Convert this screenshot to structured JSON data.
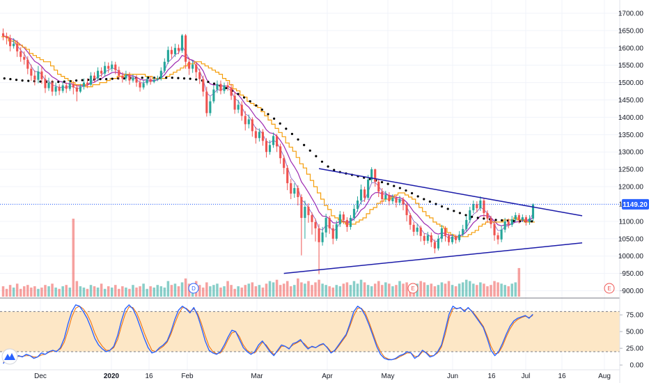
{
  "chart_data": {
    "type": "candlestick",
    "price_axis": {
      "ticks": [
        "1700.00",
        "1650.00",
        "1600.00",
        "1550.00",
        "1500.00",
        "1450.00",
        "1400.00",
        "1350.00",
        "1300.00",
        "1250.00",
        "1200.00",
        "1150.00",
        "1100.00",
        "1050.00",
        "1000.00",
        "950.00",
        "900.00"
      ],
      "ylim": [
        885,
        1730
      ]
    },
    "current_price": {
      "label": "1149.20",
      "value": 1149.2,
      "color": "#2962ff"
    },
    "x_axis_labels": [
      "Dec",
      "2020",
      "16",
      "Feb",
      "Mar",
      "Apr",
      "May",
      "Jun",
      "16",
      "Jul",
      "16",
      "Aug"
    ],
    "colors": {
      "up": "#26a69a",
      "down": "#ef5350",
      "ema_orange": "#f59e0b",
      "ma_purple": "#9c27b0",
      "dotted_ma": "#000000",
      "trendline": "#1a1aa8",
      "stoch_fast": "#2962ff",
      "stoch_slow": "#ef6c00",
      "stoch_band": "#fde7c6"
    },
    "candles": [
      [
        1642,
        1634,
        1656,
        1622
      ],
      [
        1634,
        1628,
        1644,
        1610
      ],
      [
        1628,
        1605,
        1638,
        1590
      ],
      [
        1605,
        1612,
        1628,
        1598
      ],
      [
        1612,
        1590,
        1622,
        1574
      ],
      [
        1590,
        1574,
        1602,
        1560
      ],
      [
        1574,
        1566,
        1590,
        1552
      ],
      [
        1566,
        1540,
        1576,
        1524
      ],
      [
        1540,
        1520,
        1552,
        1505
      ],
      [
        1520,
        1508,
        1535,
        1492
      ],
      [
        1508,
        1532,
        1548,
        1498
      ],
      [
        1532,
        1510,
        1546,
        1496
      ],
      [
        1510,
        1484,
        1522,
        1470
      ],
      [
        1484,
        1500,
        1514,
        1476
      ],
      [
        1500,
        1474,
        1508,
        1462
      ],
      [
        1474,
        1488,
        1500,
        1462
      ],
      [
        1488,
        1476,
        1496,
        1464
      ],
      [
        1476,
        1492,
        1504,
        1470
      ],
      [
        1492,
        1482,
        1500,
        1470
      ],
      [
        1482,
        1496,
        1508,
        1476
      ],
      [
        1496,
        1486,
        1504,
        1466
      ],
      [
        1486,
        1474,
        1494,
        1446
      ],
      [
        1474,
        1488,
        1496,
        1470
      ],
      [
        1488,
        1500,
        1512,
        1480
      ],
      [
        1500,
        1494,
        1512,
        1484
      ],
      [
        1494,
        1520,
        1530,
        1490
      ],
      [
        1520,
        1512,
        1530,
        1500
      ],
      [
        1512,
        1534,
        1544,
        1504
      ],
      [
        1534,
        1526,
        1544,
        1516
      ],
      [
        1526,
        1548,
        1560,
        1518
      ],
      [
        1548,
        1540,
        1558,
        1528
      ],
      [
        1540,
        1552,
        1562,
        1532
      ],
      [
        1552,
        1536,
        1560,
        1524
      ],
      [
        1536,
        1520,
        1546,
        1510
      ],
      [
        1520,
        1512,
        1530,
        1500
      ],
      [
        1512,
        1522,
        1534,
        1504
      ],
      [
        1522,
        1506,
        1530,
        1494
      ],
      [
        1506,
        1514,
        1524,
        1500
      ],
      [
        1514,
        1500,
        1522,
        1488
      ],
      [
        1500,
        1486,
        1508,
        1474
      ],
      [
        1486,
        1498,
        1506,
        1480
      ],
      [
        1498,
        1510,
        1518,
        1492
      ],
      [
        1510,
        1502,
        1518,
        1494
      ],
      [
        1502,
        1508,
        1516,
        1498
      ],
      [
        1508,
        1512,
        1520,
        1504
      ],
      [
        1512,
        1534,
        1544,
        1506
      ],
      [
        1534,
        1560,
        1570,
        1528
      ],
      [
        1560,
        1594,
        1604,
        1554
      ],
      [
        1594,
        1582,
        1604,
        1570
      ],
      [
        1582,
        1600,
        1612,
        1574
      ],
      [
        1600,
        1592,
        1610,
        1582
      ],
      [
        1592,
        1636,
        1640,
        1586
      ],
      [
        1636,
        1560,
        1640,
        1540
      ],
      [
        1560,
        1540,
        1572,
        1522
      ],
      [
        1540,
        1552,
        1564,
        1528
      ],
      [
        1552,
        1530,
        1560,
        1514
      ],
      [
        1530,
        1510,
        1540,
        1496
      ],
      [
        1510,
        1474,
        1520,
        1460
      ],
      [
        1474,
        1412,
        1488,
        1402
      ],
      [
        1412,
        1446,
        1460,
        1404
      ],
      [
        1446,
        1480,
        1492,
        1440
      ],
      [
        1480,
        1496,
        1506,
        1470
      ],
      [
        1496,
        1476,
        1506,
        1466
      ],
      [
        1476,
        1492,
        1500,
        1468
      ],
      [
        1492,
        1486,
        1502,
        1476
      ],
      [
        1486,
        1462,
        1496,
        1450
      ],
      [
        1462,
        1422,
        1472,
        1410
      ],
      [
        1422,
        1436,
        1450,
        1412
      ],
      [
        1436,
        1404,
        1446,
        1390
      ],
      [
        1404,
        1380,
        1418,
        1362
      ],
      [
        1380,
        1394,
        1408,
        1368
      ],
      [
        1394,
        1360,
        1400,
        1344
      ],
      [
        1360,
        1340,
        1372,
        1324
      ],
      [
        1340,
        1358,
        1368,
        1330
      ],
      [
        1358,
        1332,
        1366,
        1318
      ],
      [
        1332,
        1300,
        1340,
        1284
      ],
      [
        1300,
        1320,
        1334,
        1292
      ],
      [
        1320,
        1346,
        1356,
        1312
      ],
      [
        1346,
        1316,
        1352,
        1300
      ],
      [
        1316,
        1282,
        1324,
        1266
      ],
      [
        1282,
        1254,
        1290,
        1236
      ],
      [
        1254,
        1210,
        1262,
        1190
      ],
      [
        1210,
        1180,
        1222,
        1164
      ],
      [
        1180,
        1196,
        1210,
        1168
      ],
      [
        1196,
        1170,
        1204,
        1146
      ],
      [
        1170,
        1110,
        1178,
        1002
      ],
      [
        1110,
        1142,
        1160,
        1050
      ],
      [
        1142,
        1118,
        1152,
        1096
      ],
      [
        1118,
        1098,
        1126,
        1062
      ],
      [
        1098,
        1080,
        1108,
        1042
      ],
      [
        1080,
        1040,
        1092,
        948
      ],
      [
        1040,
        1068,
        1084,
        1030
      ],
      [
        1068,
        1110,
        1122,
        1054
      ],
      [
        1110,
        1080,
        1116,
        1064
      ],
      [
        1080,
        1050,
        1090,
        1034
      ],
      [
        1050,
        1092,
        1102,
        1044
      ],
      [
        1092,
        1120,
        1130,
        1084
      ],
      [
        1120,
        1104,
        1128,
        1092
      ],
      [
        1104,
        1084,
        1112,
        1070
      ],
      [
        1084,
        1110,
        1118,
        1076
      ],
      [
        1110,
        1136,
        1148,
        1102
      ],
      [
        1136,
        1160,
        1172,
        1128
      ],
      [
        1160,
        1192,
        1206,
        1150
      ],
      [
        1192,
        1168,
        1200,
        1156
      ],
      [
        1168,
        1220,
        1234,
        1162
      ],
      [
        1220,
        1250,
        1256,
        1212
      ],
      [
        1250,
        1214,
        1252,
        1200
      ],
      [
        1214,
        1186,
        1220,
        1170
      ],
      [
        1186,
        1164,
        1196,
        1150
      ],
      [
        1164,
        1176,
        1188,
        1156
      ],
      [
        1176,
        1158,
        1184,
        1146
      ],
      [
        1158,
        1168,
        1178,
        1150
      ],
      [
        1168,
        1154,
        1176,
        1140
      ],
      [
        1154,
        1164,
        1174,
        1146
      ],
      [
        1164,
        1148,
        1170,
        1132
      ],
      [
        1148,
        1118,
        1154,
        1100
      ],
      [
        1118,
        1090,
        1124,
        1076
      ],
      [
        1090,
        1070,
        1098,
        1058
      ],
      [
        1070,
        1082,
        1092,
        1060
      ],
      [
        1082,
        1058,
        1088,
        1042
      ],
      [
        1058,
        1044,
        1066,
        1032
      ],
      [
        1044,
        1060,
        1070,
        1036
      ],
      [
        1060,
        1040,
        1068,
        1026
      ],
      [
        1040,
        1022,
        1048,
        1008
      ],
      [
        1022,
        1050,
        1060,
        1016
      ],
      [
        1050,
        1080,
        1090,
        1040
      ],
      [
        1080,
        1058,
        1086,
        1042
      ],
      [
        1058,
        1040,
        1066,
        1030
      ],
      [
        1040,
        1056,
        1064,
        1034
      ],
      [
        1056,
        1046,
        1062,
        1036
      ],
      [
        1046,
        1062,
        1072,
        1040
      ],
      [
        1062,
        1078,
        1090,
        1056
      ],
      [
        1078,
        1104,
        1116,
        1070
      ],
      [
        1104,
        1132,
        1142,
        1096
      ],
      [
        1132,
        1150,
        1160,
        1124
      ],
      [
        1150,
        1138,
        1158,
        1126
      ],
      [
        1138,
        1160,
        1172,
        1130
      ],
      [
        1160,
        1124,
        1166,
        1110
      ],
      [
        1124,
        1108,
        1132,
        1096
      ],
      [
        1108,
        1092,
        1116,
        1080
      ],
      [
        1092,
        1060,
        1098,
        1044
      ],
      [
        1060,
        1048,
        1068,
        1034
      ],
      [
        1048,
        1076,
        1088,
        1040
      ],
      [
        1076,
        1100,
        1110,
        1068
      ],
      [
        1100,
        1090,
        1108,
        1080
      ],
      [
        1090,
        1106,
        1116,
        1084
      ],
      [
        1106,
        1118,
        1126,
        1098
      ],
      [
        1118,
        1104,
        1124,
        1094
      ],
      [
        1104,
        1112,
        1120,
        1098
      ],
      [
        1112,
        1098,
        1118,
        1088
      ],
      [
        1098,
        1108,
        1118,
        1090
      ],
      [
        1108,
        1149,
        1152,
        1100
      ]
    ],
    "dotted_ma": [
      1512,
      1510,
      1508,
      1506,
      1505,
      1504,
      1503,
      1502,
      1502,
      1502,
      1503,
      1504,
      1506,
      1507,
      1508,
      1509,
      1510,
      1510,
      1511,
      1512,
      1512,
      1513,
      1513,
      1514,
      1514,
      1514,
      1514,
      1514,
      1514,
      1513,
      1512,
      1511,
      1509,
      1506,
      1502,
      1497,
      1491,
      1484,
      1476,
      1467,
      1457,
      1446,
      1434,
      1422,
      1409,
      1396,
      1382,
      1367,
      1352,
      1336,
      1320,
      1304,
      1288,
      1272,
      1258,
      1248,
      1242,
      1238,
      1234,
      1230,
      1226,
      1222,
      1218,
      1213,
      1208,
      1202,
      1196,
      1189,
      1181,
      1172,
      1164,
      1157,
      1150,
      1143,
      1136,
      1130,
      1124,
      1118,
      1113,
      1110,
      1108,
      1106,
      1104,
      1103,
      1102,
      1101,
      1100,
      1100,
      1100
    ],
    "trendlines": [
      {
        "from": [
          90,
          1252
        ],
        "to": [
          165,
          1116
        ]
      },
      {
        "from": [
          80,
          950
        ],
        "to": [
          165,
          1038
        ]
      }
    ],
    "volume": [
      8,
      6,
      9,
      7,
      10,
      6,
      8,
      9,
      7,
      8,
      6,
      7,
      9,
      8,
      10,
      7,
      6,
      8,
      9,
      7,
      60,
      12,
      8,
      7,
      6,
      9,
      8,
      7,
      10,
      6,
      8,
      7,
      9,
      6,
      8,
      7,
      6,
      9,
      7,
      8,
      10,
      6,
      8,
      7,
      9,
      8,
      7,
      12,
      9,
      10,
      8,
      11,
      14,
      10,
      8,
      12,
      9,
      7,
      11,
      8,
      9,
      10,
      7,
      8,
      12,
      9,
      6,
      8,
      7,
      9,
      10,
      11,
      8,
      9,
      7,
      10,
      12,
      11,
      13,
      9,
      10,
      12,
      8,
      9,
      14,
      11,
      10,
      12,
      9,
      11,
      13,
      10,
      9,
      8,
      7,
      9,
      8,
      10,
      11,
      9,
      12,
      10,
      13,
      11,
      9,
      8,
      10,
      12,
      9,
      11,
      10,
      8,
      9,
      12,
      10,
      11,
      9,
      8,
      10,
      12,
      11,
      9,
      10,
      8,
      9,
      11,
      10,
      12,
      9,
      8,
      10,
      11,
      13,
      12,
      10,
      9,
      11,
      10,
      8,
      9,
      12,
      11,
      10,
      9,
      8,
      10,
      11,
      22
    ],
    "events": [
      {
        "label": "D",
        "color": "#2962ff"
      },
      {
        "label": "E",
        "color": "#ef5350"
      },
      {
        "label": "E",
        "color": "#ef5350"
      }
    ],
    "stoch_axis": {
      "ticks": [
        "75.00",
        "50.00",
        "25.00",
        "0.00"
      ],
      "ylim": [
        -4,
        96
      ]
    },
    "stoch_fast": [
      2,
      12,
      18,
      10,
      14,
      12,
      16,
      14,
      10,
      12,
      18,
      16,
      20,
      22,
      20,
      26,
      40,
      62,
      80,
      90,
      88,
      80,
      70,
      56,
      40,
      30,
      24,
      20,
      22,
      28,
      44,
      66,
      84,
      90,
      84,
      72,
      56,
      40,
      26,
      18,
      20,
      26,
      30,
      36,
      50,
      68,
      82,
      88,
      84,
      78,
      86,
      74,
      56,
      36,
      22,
      18,
      16,
      20,
      30,
      42,
      52,
      50,
      38,
      26,
      20,
      16,
      20,
      30,
      36,
      28,
      20,
      14,
      22,
      30,
      28,
      24,
      32,
      34,
      38,
      30,
      24,
      28,
      26,
      30,
      32,
      26,
      18,
      22,
      30,
      38,
      46,
      62,
      80,
      88,
      84,
      74,
      60,
      44,
      28,
      16,
      10,
      8,
      8,
      10,
      14,
      16,
      20,
      18,
      10,
      14,
      22,
      18,
      12,
      14,
      20,
      30,
      52,
      76,
      88,
      84,
      86,
      80,
      86,
      80,
      72,
      64,
      56,
      40,
      22,
      14,
      20,
      32,
      46,
      58,
      66,
      70,
      72,
      74,
      70,
      76
    ],
    "stoch_slow": [
      4,
      10,
      15,
      12,
      13,
      13,
      14,
      14,
      12,
      12,
      15,
      16,
      19,
      21,
      21,
      24,
      34,
      52,
      72,
      85,
      88,
      84,
      76,
      64,
      48,
      36,
      28,
      22,
      22,
      26,
      38,
      58,
      76,
      87,
      86,
      78,
      64,
      48,
      34,
      22,
      20,
      24,
      28,
      34,
      46,
      62,
      76,
      86,
      85,
      80,
      84,
      77,
      62,
      44,
      28,
      20,
      17,
      18,
      26,
      38,
      48,
      50,
      42,
      30,
      22,
      18,
      18,
      26,
      34,
      30,
      22,
      16,
      20,
      28,
      28,
      25,
      30,
      33,
      36,
      32,
      26,
      27,
      26,
      29,
      31,
      27,
      20,
      21,
      28,
      36,
      44,
      58,
      74,
      85,
      85,
      78,
      64,
      48,
      32,
      20,
      12,
      9,
      8,
      9,
      12,
      15,
      18,
      18,
      13,
      13,
      20,
      19,
      14,
      14,
      18,
      27,
      46,
      70,
      84,
      85,
      85,
      82,
      85,
      81,
      74,
      66,
      58,
      44,
      28,
      17,
      18,
      28,
      42,
      54,
      63,
      68,
      71,
      73,
      71,
      74
    ],
    "stoch_bands": {
      "upper": 80,
      "lower": 20
    }
  }
}
